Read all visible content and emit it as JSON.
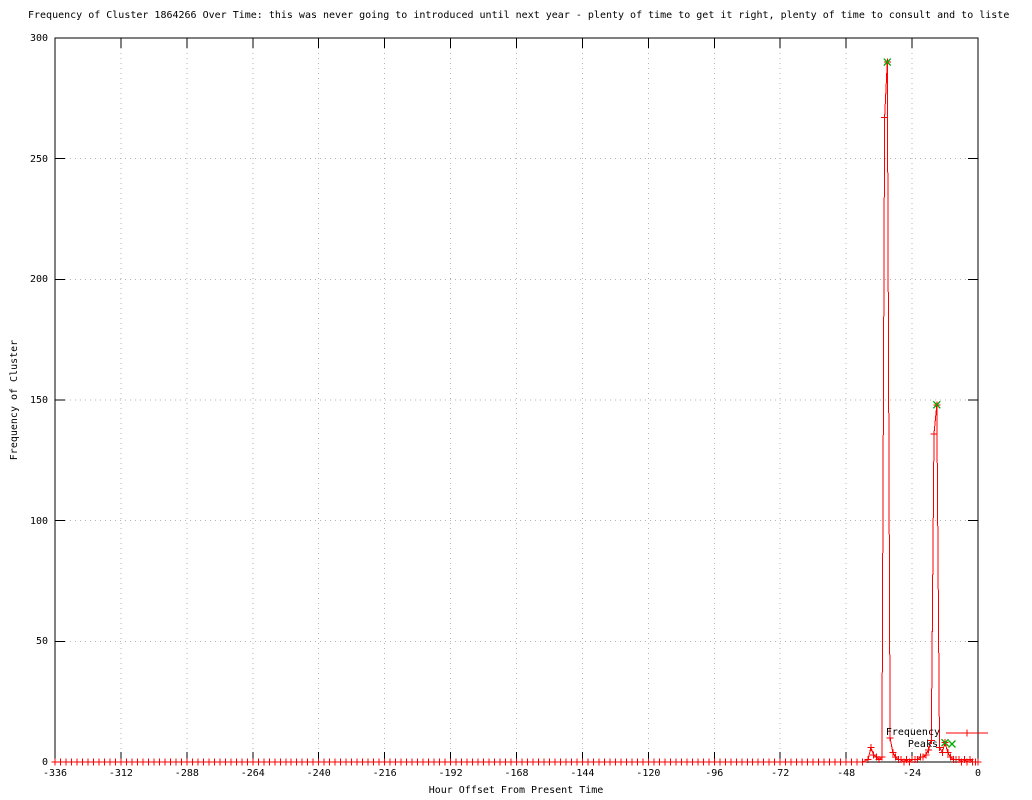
{
  "chart_data": {
    "type": "line",
    "title": "Frequency of Cluster 1864266 Over Time: this was never going to introduced until next year - plenty of time to get it right, plenty of time to consult and to liste",
    "xlabel": "Hour Offset From Present Time",
    "ylabel": "Frequency of Cluster",
    "xlim": [
      -336,
      0
    ],
    "ylim": [
      0,
      300
    ],
    "x_ticks": [
      -336,
      -312,
      -288,
      -264,
      -240,
      -216,
      -192,
      -168,
      -144,
      -120,
      -96,
      -72,
      -48,
      -24,
      0
    ],
    "y_ticks": [
      0,
      50,
      100,
      150,
      200,
      250,
      300
    ],
    "grid": true,
    "grid_color": "#b4b4b4",
    "legend_position": "bottom-right-inside",
    "series": [
      {
        "name": "Frequency",
        "color": "#ff0000",
        "style": "linespoints",
        "marker": "plus",
        "baseline": {
          "x_start": -336,
          "x_end": -42,
          "step": 2,
          "value": 0
        },
        "points": [
          [
            -40,
            1
          ],
          [
            -39,
            6
          ],
          [
            -38,
            3
          ],
          [
            -37,
            2
          ],
          [
            -36,
            1
          ],
          [
            -35,
            2
          ],
          [
            -34,
            267
          ],
          [
            -33,
            290
          ],
          [
            -32,
            10
          ],
          [
            -31,
            4
          ],
          [
            -30,
            2
          ],
          [
            -29,
            1
          ],
          [
            -28,
            1
          ],
          [
            -27,
            0
          ],
          [
            -26,
            1
          ],
          [
            -25,
            0
          ],
          [
            -24,
            1
          ],
          [
            -23,
            1
          ],
          [
            -22,
            1
          ],
          [
            -21,
            2
          ],
          [
            -20,
            2
          ],
          [
            -19,
            3
          ],
          [
            -18,
            5
          ],
          [
            -17,
            9
          ],
          [
            -16,
            136
          ],
          [
            -15,
            148
          ],
          [
            -14,
            6
          ],
          [
            -13,
            4
          ],
          [
            -12,
            8
          ],
          [
            -11,
            4
          ],
          [
            -10,
            2
          ],
          [
            -9,
            1
          ],
          [
            -8,
            1
          ],
          [
            -7,
            1
          ],
          [
            -6,
            0
          ],
          [
            -5,
            1
          ],
          [
            -4,
            0
          ],
          [
            -3,
            1
          ],
          [
            -2,
            0
          ],
          [
            -1,
            0
          ],
          [
            0,
            0
          ]
        ]
      },
      {
        "name": "Peaks",
        "color": "#00aa00",
        "style": "points",
        "marker": "cross",
        "points": [
          [
            -33,
            290
          ],
          [
            -15,
            148
          ],
          [
            -12,
            8
          ]
        ]
      }
    ]
  }
}
